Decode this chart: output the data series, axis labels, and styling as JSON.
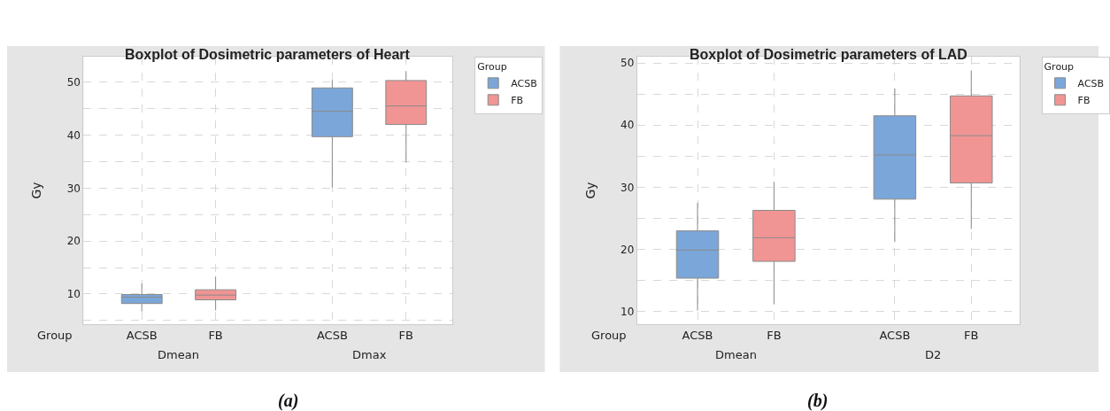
{
  "chart_data": [
    {
      "type": "box",
      "title": "Boxplot of Dosimetric parameters of Heart",
      "xlabel": "Group",
      "ylabel": "Gy",
      "legend_title": "Group",
      "legend": "top right",
      "grid": true,
      "categories": [
        "Dmean",
        "Dmax"
      ],
      "ylim": [
        4.3,
        54.8
      ],
      "yticks": [
        {
          "value": 5,
          "label": null
        },
        10,
        {
          "value": 15,
          "label": null
        },
        20,
        {
          "value": 25,
          "label": null
        },
        30,
        {
          "value": 35,
          "label": null
        },
        40,
        {
          "value": 45,
          "label": null
        },
        50
      ],
      "series": [
        {
          "name": "ACSB",
          "color": "#7ba6d9",
          "boxes": [
            {
              "low": 6.7,
              "q1": 8.2,
              "median": 9.4,
              "q3": 9.9,
              "high": 12.0
            },
            {
              "low": 30.1,
              "q1": 39.7,
              "median": 44.5,
              "q3": 48.9,
              "high": 50.4
            }
          ]
        },
        {
          "name": "FB",
          "color": "#f09594",
          "boxes": [
            {
              "low": 6.9,
              "q1": 8.9,
              "median": 9.8,
              "q3": 10.8,
              "high": 13.3
            },
            {
              "low": 34.8,
              "q1": 42.0,
              "median": 45.5,
              "q3": 50.3,
              "high": 52.1
            }
          ]
        }
      ],
      "annotations": [
        "(a)"
      ]
    },
    {
      "type": "box",
      "title": "Boxplot of Dosimetric parameters of LAD",
      "xlabel": "Group",
      "ylabel": "Gy",
      "legend_title": "Group",
      "legend": "top right",
      "grid": true,
      "categories": [
        "Dmean",
        "D2"
      ],
      "ylim": [
        8.0,
        51.0
      ],
      "yticks": [
        10,
        {
          "value": 15,
          "label": null
        },
        20,
        {
          "value": 25,
          "label": null
        },
        30,
        {
          "value": 35,
          "label": null
        },
        40,
        {
          "value": 45,
          "label": null
        },
        50
      ],
      "series": [
        {
          "name": "ACSB",
          "color": "#7ba6d9",
          "boxes": [
            {
              "low": 10.2,
              "q1": 15.4,
              "median": 19.9,
              "q3": 23.0,
              "high": 27.5
            },
            {
              "low": 21.2,
              "q1": 28.1,
              "median": 35.2,
              "q3": 41.5,
              "high": 45.9
            }
          ]
        },
        {
          "name": "FB",
          "color": "#f09594",
          "boxes": [
            {
              "low": 11.2,
              "q1": 18.1,
              "median": 21.9,
              "q3": 26.3,
              "high": 30.9
            },
            {
              "low": 23.3,
              "q1": 30.7,
              "median": 38.3,
              "q3": 44.7,
              "high": 48.8
            }
          ]
        }
      ],
      "annotations": [
        "(b)"
      ]
    }
  ]
}
